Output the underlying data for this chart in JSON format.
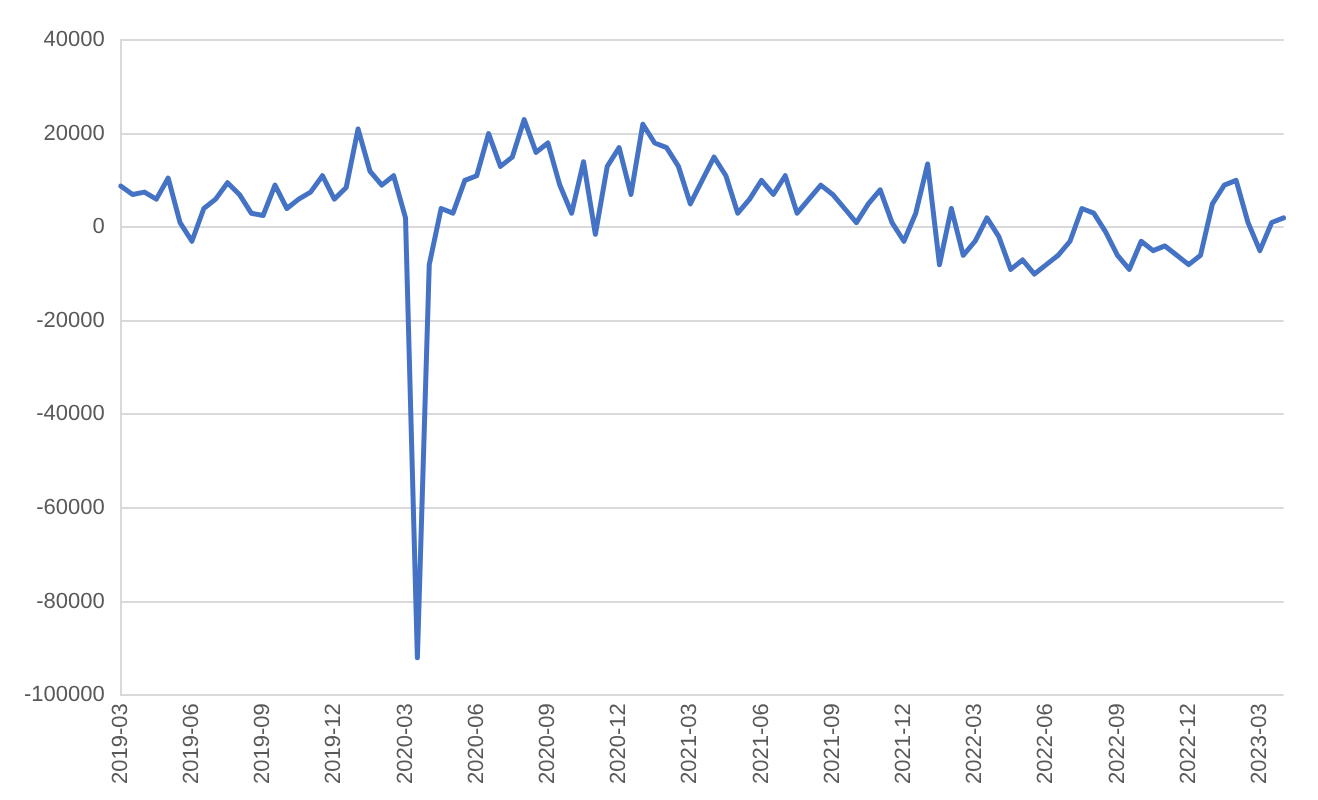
{
  "chart_data": {
    "type": "line",
    "categories": [
      "2019-03",
      null,
      null,
      null,
      null,
      null,
      "2019-06",
      null,
      null,
      null,
      null,
      null,
      "2019-09",
      null,
      null,
      null,
      null,
      null,
      "2019-12",
      null,
      null,
      null,
      null,
      null,
      "2020-03",
      null,
      null,
      null,
      null,
      null,
      "2020-06",
      null,
      null,
      null,
      null,
      null,
      "2020-09",
      null,
      null,
      null,
      null,
      null,
      "2020-12",
      null,
      null,
      null,
      null,
      null,
      "2021-03",
      null,
      null,
      null,
      null,
      null,
      "2021-06",
      null,
      null,
      null,
      null,
      null,
      "2021-09",
      null,
      null,
      null,
      null,
      null,
      "2021-12",
      null,
      null,
      null,
      null,
      null,
      "2022-03",
      null,
      null,
      null,
      null,
      null,
      "2022-06",
      null,
      null,
      null,
      null,
      null,
      "2022-09",
      null,
      null,
      null,
      null,
      null,
      "2022-12",
      null,
      null,
      null,
      null,
      null,
      "2023-03",
      null,
      null
    ],
    "series": [
      {
        "color": "#4472c4",
        "values": [
          8800,
          7000,
          7500,
          6000,
          10500,
          1000,
          -3000,
          4000,
          6000,
          9500,
          7000,
          3000,
          2500,
          9000,
          4000,
          6000,
          7500,
          11000,
          6000,
          8500,
          21000,
          12000,
          9000,
          11000,
          2000,
          -92000,
          -8000,
          4000,
          3000,
          10000,
          11000,
          20000,
          13000,
          15000,
          23000,
          16000,
          18000,
          9000,
          3000,
          14000,
          -1500,
          13000,
          17000,
          7000,
          22000,
          18000,
          17000,
          13000,
          5000,
          10000,
          15000,
          11000,
          3000,
          6000,
          10000,
          7000,
          11000,
          3000,
          6000,
          9000,
          7000,
          4000,
          1000,
          5000,
          8000,
          1000,
          -3000,
          3000,
          13500,
          -8000,
          4000,
          -6000,
          -3000,
          2000,
          -2000,
          -9000,
          -7000,
          -10000,
          -8000,
          -6000,
          -3000,
          4000,
          3000,
          -1000,
          -6000,
          -9000,
          -3000,
          -5000,
          -4000,
          -6000,
          -8000,
          -6000,
          5000,
          9000,
          10000,
          1000,
          -5000,
          1000,
          2000
        ]
      }
    ],
    "ylim": [
      -100000,
      40000
    ],
    "yticks": [
      -100000,
      -80000,
      -60000,
      -40000,
      -20000,
      0,
      20000,
      40000
    ],
    "grid": "y",
    "legend": false,
    "marker": "none",
    "line_style": "solid"
  }
}
